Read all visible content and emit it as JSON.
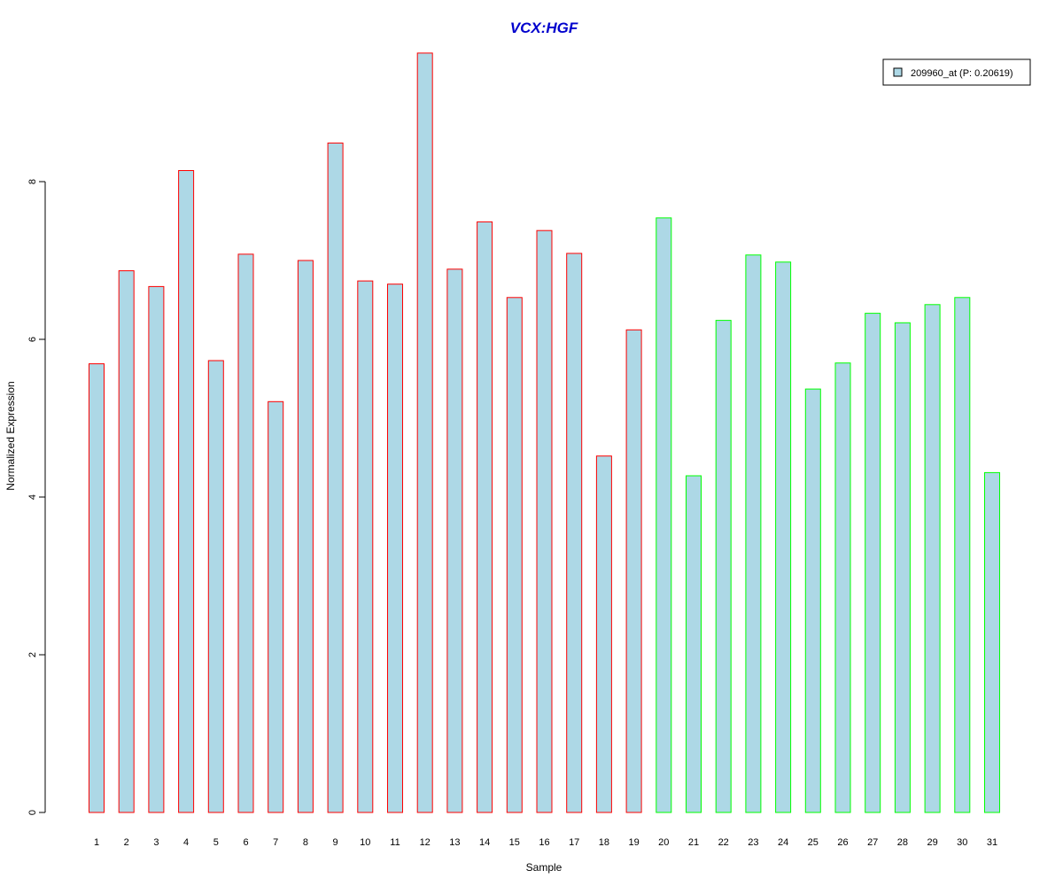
{
  "chart_data": {
    "type": "bar",
    "title": "VCX:HGF",
    "xlabel": "Sample",
    "ylabel": "Normalized Expression",
    "categories": [
      "1",
      "2",
      "3",
      "4",
      "5",
      "6",
      "7",
      "8",
      "9",
      "10",
      "11",
      "12",
      "13",
      "14",
      "15",
      "16",
      "17",
      "18",
      "19",
      "20",
      "21",
      "22",
      "23",
      "24",
      "25",
      "26",
      "27",
      "28",
      "29",
      "30",
      "31"
    ],
    "values": [
      5.69,
      6.87,
      6.67,
      8.14,
      5.73,
      7.08,
      5.21,
      7.0,
      8.49,
      6.74,
      6.7,
      9.63,
      6.89,
      7.49,
      6.53,
      7.38,
      7.09,
      4.52,
      6.12,
      7.54,
      4.27,
      6.24,
      7.07,
      6.98,
      5.37,
      5.7,
      6.33,
      6.21,
      6.44,
      6.53,
      4.31
    ],
    "groups": [
      1,
      1,
      1,
      1,
      1,
      1,
      1,
      1,
      1,
      1,
      1,
      1,
      1,
      1,
      1,
      1,
      1,
      1,
      1,
      2,
      2,
      2,
      2,
      2,
      2,
      2,
      2,
      2,
      2,
      2,
      2
    ],
    "series": [
      {
        "name": "209960_at (P: 0.20619)",
        "values": [
          5.69,
          6.87,
          6.67,
          8.14,
          5.73,
          7.08,
          5.21,
          7.0,
          8.49,
          6.74,
          6.7,
          9.63,
          6.89,
          7.49,
          6.53,
          7.38,
          7.09,
          4.52,
          6.12,
          7.54,
          4.27,
          6.24,
          7.07,
          6.98,
          5.37,
          5.7,
          6.33,
          6.21,
          6.44,
          6.53,
          4.31
        ]
      }
    ],
    "yticks": [
      "0",
      "2",
      "4",
      "6",
      "8"
    ],
    "ylim": [
      0,
      9.63
    ],
    "grid": false,
    "legend_position": "top-right",
    "colors": {
      "bar_fill": "#add8e6",
      "group1_border": "#ff0000",
      "group2_border": "#00ff00",
      "title": "#0000cd",
      "axis": "#000000"
    }
  }
}
